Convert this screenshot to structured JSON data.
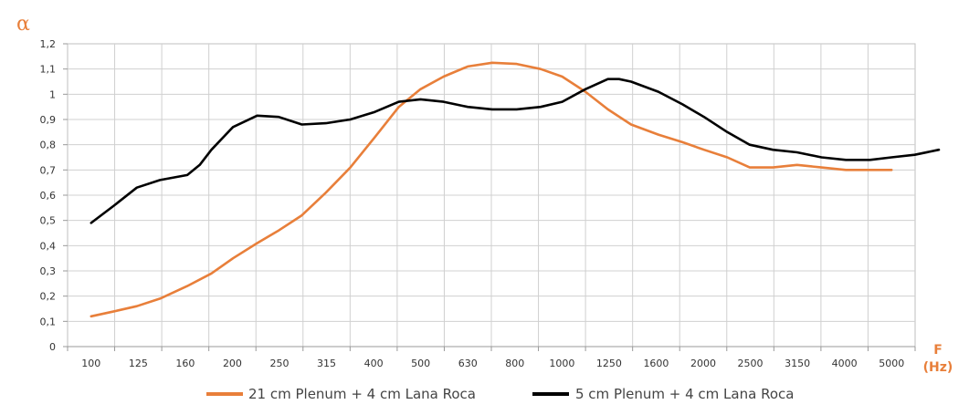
{
  "chart_data": {
    "type": "line",
    "title": "",
    "ylabel": "α",
    "xlabel_top": "F",
    "xlabel_bottom": "(Hz)",
    "ylim": [
      0,
      1.2
    ],
    "y_ticks": [
      "0",
      "0,1",
      "0,2",
      "0,3",
      "0,4",
      "0,5",
      "0,6",
      "0,7",
      "0,8",
      "0,9",
      "1",
      "1,1",
      "1,2"
    ],
    "categories": [
      "100",
      "125",
      "160",
      "200",
      "250",
      "315",
      "400",
      "500",
      "630",
      "800",
      "1000",
      "1250",
      "1600",
      "2000",
      "2500",
      "3150",
      "4000",
      "5000"
    ],
    "x_scale": "log",
    "grid": true,
    "legend_position": "bottom",
    "series": [
      {
        "name": "21 cm Plenum + 4 cm Lana Roca",
        "color": "#E87F3A",
        "points": [
          [
            100,
            0.12
          ],
          [
            112,
            0.14
          ],
          [
            125,
            0.16
          ],
          [
            140,
            0.19
          ],
          [
            160,
            0.24
          ],
          [
            180,
            0.29
          ],
          [
            200,
            0.35
          ],
          [
            225,
            0.41
          ],
          [
            250,
            0.46
          ],
          [
            280,
            0.52
          ],
          [
            315,
            0.61
          ],
          [
            355,
            0.71
          ],
          [
            400,
            0.83
          ],
          [
            450,
            0.95
          ],
          [
            500,
            1.02
          ],
          [
            560,
            1.07
          ],
          [
            630,
            1.11
          ],
          [
            710,
            1.125
          ],
          [
            800,
            1.12
          ],
          [
            900,
            1.1
          ],
          [
            1000,
            1.07
          ],
          [
            1120,
            1.01
          ],
          [
            1250,
            0.94
          ],
          [
            1400,
            0.88
          ],
          [
            1600,
            0.84
          ],
          [
            1800,
            0.81
          ],
          [
            2000,
            0.78
          ],
          [
            2240,
            0.75
          ],
          [
            2500,
            0.71
          ],
          [
            2800,
            0.71
          ],
          [
            3150,
            0.72
          ],
          [
            3550,
            0.71
          ],
          [
            4000,
            0.7
          ],
          [
            4500,
            0.7
          ],
          [
            5000,
            0.7
          ]
        ]
      },
      {
        "name": "5 cm Plenum + 4 cm Lana Roca",
        "color": "#000000",
        "points": [
          [
            100,
            0.49
          ],
          [
            112,
            0.56
          ],
          [
            125,
            0.63
          ],
          [
            140,
            0.66
          ],
          [
            160,
            0.68
          ],
          [
            170,
            0.72
          ],
          [
            180,
            0.78
          ],
          [
            200,
            0.87
          ],
          [
            225,
            0.915
          ],
          [
            250,
            0.91
          ],
          [
            280,
            0.88
          ],
          [
            315,
            0.885
          ],
          [
            355,
            0.9
          ],
          [
            400,
            0.93
          ],
          [
            450,
            0.97
          ],
          [
            500,
            0.98
          ],
          [
            560,
            0.97
          ],
          [
            630,
            0.95
          ],
          [
            710,
            0.94
          ],
          [
            800,
            0.94
          ],
          [
            900,
            0.95
          ],
          [
            1000,
            0.97
          ],
          [
            1120,
            1.02
          ],
          [
            1250,
            1.06
          ],
          [
            1320,
            1.06
          ],
          [
            1400,
            1.05
          ],
          [
            1600,
            1.01
          ],
          [
            1800,
            0.96
          ],
          [
            2000,
            0.91
          ],
          [
            2240,
            0.85
          ],
          [
            2500,
            0.8
          ],
          [
            2800,
            0.78
          ],
          [
            3150,
            0.77
          ],
          [
            3550,
            0.75
          ],
          [
            4000,
            0.74
          ],
          [
            4500,
            0.74
          ],
          [
            5000,
            0.75
          ],
          [
            5600,
            0.76
          ],
          [
            6300,
            0.78
          ]
        ]
      }
    ]
  }
}
